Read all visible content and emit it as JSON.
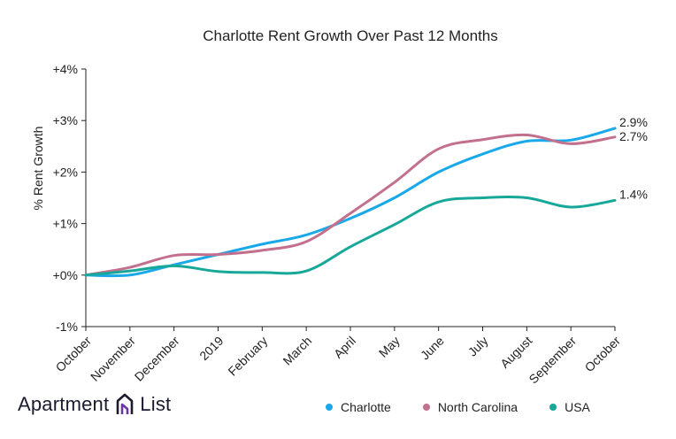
{
  "brand": {
    "part1": "Apartment",
    "part2": "List"
  },
  "chart_data": {
    "type": "line",
    "title": "Charlotte Rent Growth Over Past 12 Months",
    "ylabel": "% Rent Growth",
    "xlabel": "",
    "categories": [
      "October",
      "November",
      "December",
      "2019",
      "February",
      "March",
      "April",
      "May",
      "June",
      "July",
      "August",
      "September",
      "October"
    ],
    "yticks": [
      "-1%",
      "+0%",
      "+1%",
      "+2%",
      "+3%",
      "+4%"
    ],
    "ylim": [
      -1,
      4
    ],
    "grid": false,
    "legend_position": "bottom",
    "series": [
      {
        "name": "Charlotte",
        "color": "#1aa9e8",
        "end_label": "2.9%",
        "values": [
          0.0,
          0.0,
          0.2,
          0.4,
          0.6,
          0.78,
          1.1,
          1.5,
          2.0,
          2.35,
          2.6,
          2.62,
          2.85
        ]
      },
      {
        "name": "North Carolina",
        "color": "#c2708d",
        "end_label": "2.7%",
        "values": [
          0.0,
          0.15,
          0.38,
          0.4,
          0.48,
          0.65,
          1.2,
          1.8,
          2.45,
          2.63,
          2.72,
          2.55,
          2.68
        ]
      },
      {
        "name": "USA",
        "color": "#18a899",
        "end_label": "1.4%",
        "values": [
          0.0,
          0.08,
          0.18,
          0.07,
          0.05,
          0.08,
          0.55,
          0.98,
          1.42,
          1.5,
          1.5,
          1.32,
          1.45
        ]
      }
    ]
  }
}
